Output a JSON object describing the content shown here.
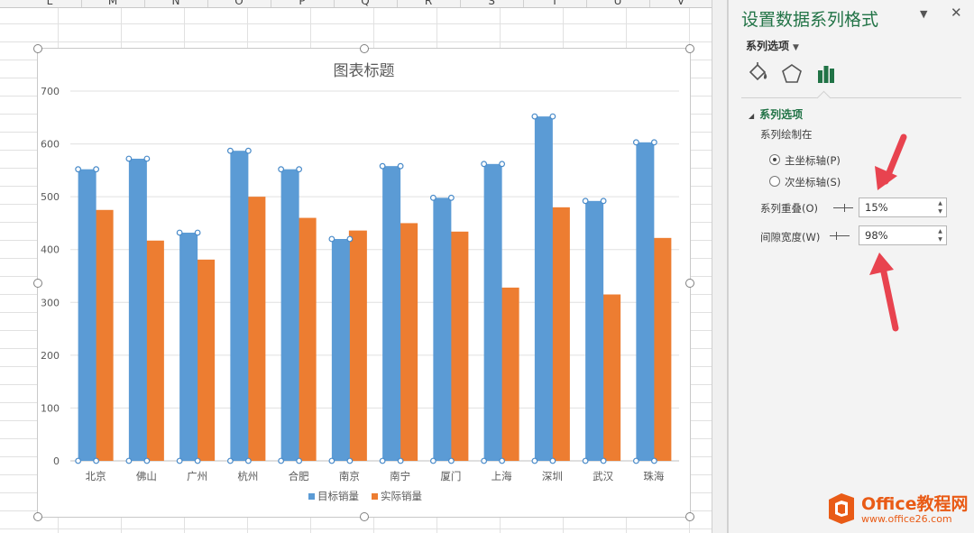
{
  "sheet": {
    "columns": [
      "L",
      "M",
      "N",
      "O",
      "P",
      "Q",
      "R",
      "S",
      "T",
      "U",
      "V"
    ]
  },
  "chart_data": {
    "type": "bar",
    "title": "图表标题",
    "categories": [
      "北京",
      "佛山",
      "广州",
      "杭州",
      "合肥",
      "南京",
      "南宁",
      "厦门",
      "上海",
      "深圳",
      "武汉",
      "珠海"
    ],
    "series": [
      {
        "name": "目标销量",
        "color": "#5b9bd5",
        "values": [
          552,
          572,
          432,
          587,
          552,
          420,
          558,
          498,
          562,
          652,
          492,
          603
        ]
      },
      {
        "name": "实际销量",
        "color": "#ed7d31",
        "values": [
          475,
          417,
          381,
          500,
          460,
          436,
          450,
          434,
          328,
          480,
          315,
          422
        ]
      }
    ],
    "yticks": [
      "0",
      "100",
      "200",
      "300",
      "400",
      "500",
      "600",
      "700"
    ],
    "ylim": [
      0,
      700
    ],
    "grid": true,
    "legend_position": "bottom",
    "series_overlap_percent": 15,
    "gap_width_percent": 98
  },
  "pane": {
    "title": "设置数据系列格式",
    "dropdown_icon": "chevron-down-icon",
    "close_icon": "close-icon",
    "series_options_menu": "系列选项",
    "tabs": [
      "fill-line-icon",
      "effects-pentagon-icon",
      "series-options-bar-icon"
    ],
    "active_tab": "series-options-bar-icon",
    "section_title": "系列选项",
    "plot_on_label": "系列绘制在",
    "primary_axis_label": "主坐标轴(P)",
    "secondary_axis_label": "次坐标轴(S)",
    "primary_selected": true,
    "overlap_label": "系列重叠(O)",
    "overlap_value": "15%",
    "gap_label": "间隙宽度(W)",
    "gap_value": "98%",
    "accent_color": "#217346",
    "arrow_color": "#e8434f"
  },
  "watermark": {
    "brand": "Office教程网",
    "url": "www.office26.com",
    "color": "#e95b16"
  }
}
